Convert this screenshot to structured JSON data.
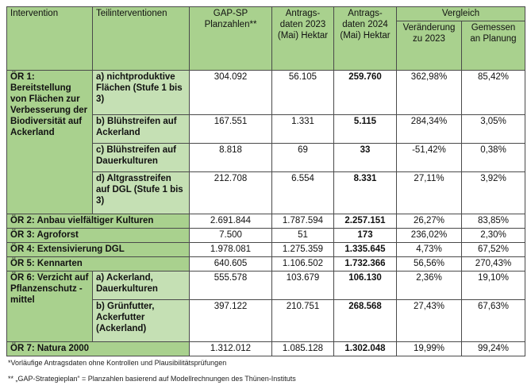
{
  "header": {
    "intervention": "Intervention",
    "teil": "Teilinterventionen",
    "gap": "GAP-SP Planzahlen**",
    "d2023": "Antrags- daten 2023 (Mai) Hektar",
    "d2024": "Antrags- daten 2024 (Mai) Hektar",
    "vergleich": "Vergleich",
    "ver": "Veränderung zu 2023",
    "gem": "Gemessen an Planung"
  },
  "rows": [
    {
      "label": "ÖR 1: Bereitstellung von Flächen zur Verbesserung der Biodiversität auf Ackerland",
      "sub": "a) nichtproduktive Flächen (Stufe 1 bis 3)",
      "gap": "304.092",
      "d2023": "56.105",
      "d2024": "259.760",
      "ver": "362,98%",
      "gem": "85,42%"
    },
    {
      "sub": "b) Blühstreifen auf Ackerland",
      "gap": "167.551",
      "d2023": "1.331",
      "d2024": "5.115",
      "ver": "284,34%",
      "gem": "3,05%"
    },
    {
      "sub": "c) Blühstreifen auf Dauerkulturen",
      "gap": "8.818",
      "d2023": "69",
      "d2024": "33",
      "ver": "-51,42%",
      "gem": "0,38%"
    },
    {
      "sub": "d) Altgrasstreifen auf DGL (Stufe 1 bis 3)",
      "gap": "212.708",
      "d2023": "6.554",
      "d2024": "8.331",
      "ver": "27,11%",
      "gem": "3,92%"
    },
    {
      "label": "ÖR 2: Anbau vielfältiger Kulturen",
      "gap": "2.691.844",
      "d2023": "1.787.594",
      "d2024": "2.257.151",
      "ver": "26,27%",
      "gem": "83,85%"
    },
    {
      "label": "ÖR 3: Agroforst",
      "gap": "7.500",
      "d2023": "51",
      "d2024": "173",
      "ver": "236,02%",
      "gem": "2,30%"
    },
    {
      "label": "ÖR 4: Extensivierung DGL",
      "gap": "1.978.081",
      "d2023": "1.275.359",
      "d2024": "1.335.645",
      "ver": "4,73%",
      "gem": "67,52%"
    },
    {
      "label": "ÖR 5: Kennarten",
      "gap": "640.605",
      "d2023": "1.106.502",
      "d2024": "1.732.366",
      "ver": "56,56%",
      "gem": "270,43%"
    },
    {
      "label": "ÖR 6: Verzicht auf Pflanzenschutz -mittel",
      "sub": "a) Ackerland, Dauerkulturen",
      "gap": "555.578",
      "d2023": "103.679",
      "d2024": "106.130",
      "ver": "2,36%",
      "gem": "19,10%"
    },
    {
      "sub": "b) Grünfutter, Ackerfutter (Ackerland)",
      "gap": "397.122",
      "d2023": "210.751",
      "d2024": "268.568",
      "ver": "27,43%",
      "gem": "67,63%"
    },
    {
      "label": "ÖR 7: Natura 2000",
      "gap": "1.312.012",
      "d2023": "1.085.128",
      "d2024": "1.302.048",
      "ver": "19,99%",
      "gem": "99,24%"
    }
  ],
  "notes": {
    "n1": "*Vorläufige Antragsdaten ohne Kontrollen und Plausibilitätsprüfungen",
    "n2": "** „GAP-Strategieplan“ = Planzahlen basierend auf Modellrechnungen des Thünen-Instituts"
  }
}
